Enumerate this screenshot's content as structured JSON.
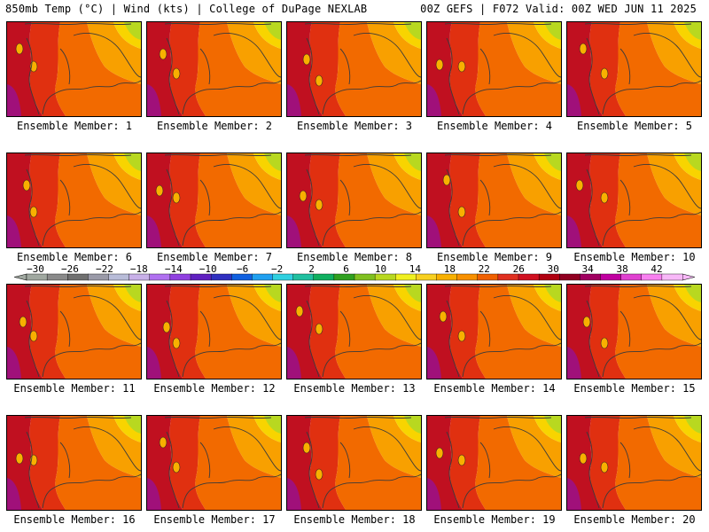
{
  "header": {
    "title": "850mb Temp (°C) | Wind (kts) | College of DuPage NEXLAB",
    "run_info": "00Z GEFS | F072 Valid: 00Z WED JUN 11 2025"
  },
  "members": [
    "Ensemble Member: 1",
    "Ensemble Member: 2",
    "Ensemble Member: 3",
    "Ensemble Member: 4",
    "Ensemble Member: 5",
    "Ensemble Member: 6",
    "Ensemble Member: 7",
    "Ensemble Member: 8",
    "Ensemble Member: 9",
    "Ensemble Member: 10",
    "Ensemble Member: 11",
    "Ensemble Member: 12",
    "Ensemble Member: 13",
    "Ensemble Member: 14",
    "Ensemble Member: 15",
    "Ensemble Member: 16",
    "Ensemble Member: 17",
    "Ensemble Member: 18",
    "Ensemble Member: 19",
    "Ensemble Member: 20"
  ],
  "colorbar": {
    "ticks": [
      "−30",
      "−26",
      "−22",
      "−18",
      "−14",
      "−10",
      "−6",
      "−2",
      "2",
      "6",
      "10",
      "14",
      "18",
      "22",
      "26",
      "30",
      "34",
      "38",
      "42"
    ],
    "colors": [
      "#a0a8a0",
      "#8a8a8a",
      "#707070",
      "#9a9aa8",
      "#b8bcd8",
      "#c8b0e8",
      "#b070f0",
      "#9040e0",
      "#6020c0",
      "#3030c0",
      "#1060e0",
      "#20a0f0",
      "#30d0e0",
      "#20c0a0",
      "#10b060",
      "#30a020",
      "#80c020",
      "#b8d820",
      "#f0f020",
      "#f8d020",
      "#f8b000",
      "#f89000",
      "#f06000",
      "#e03020",
      "#d01020",
      "#b00010",
      "#900020",
      "#a00060",
      "#c000a0",
      "#e040d0",
      "#f880f0",
      "#f8b8f8"
    ]
  }
}
